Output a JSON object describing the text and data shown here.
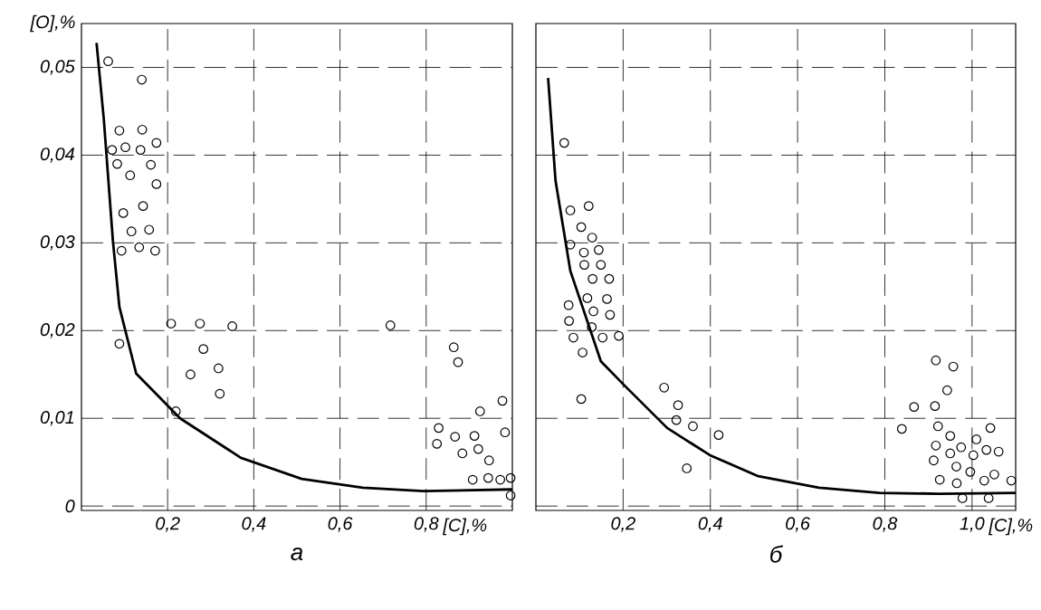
{
  "chart_data": [
    {
      "type": "scatter",
      "title": "а",
      "xlabel": "[C],%",
      "ylabel": "[O],%",
      "xlim": [
        0,
        1.0
      ],
      "ylim": [
        -0.0005,
        0.055
      ],
      "xticks": [
        {
          "value": 0.2,
          "label": "0,2"
        },
        {
          "value": 0.4,
          "label": "0,4"
        },
        {
          "value": 0.6,
          "label": "0,6"
        },
        {
          "value": 0.8,
          "label": "0,8"
        }
      ],
      "yticks": [
        0,
        {
          "value": 0.01,
          "label": "0,01"
        },
        {
          "value": 0.02,
          "label": "0,02"
        },
        {
          "value": 0.03,
          "label": "0,03"
        },
        {
          "value": 0.04,
          "label": "0,04"
        },
        {
          "value": 0.05,
          "label": "0,05"
        }
      ],
      "grid": true,
      "legend": false,
      "series": [
        {
          "marker": "circle",
          "color": "#000000",
          "x": [
            0.062,
            0.14,
            0.088,
            0.141,
            0.071,
            0.102,
            0.137,
            0.174,
            0.083,
            0.161,
            0.113,
            0.174,
            0.097,
            0.143,
            0.116,
            0.157,
            0.093,
            0.134,
            0.171,
            0.088,
            0.208,
            0.275,
            0.35,
            0.717,
            0.283,
            0.253,
            0.318,
            0.321,
            0.219,
            0.864,
            0.874,
            0.977,
            0.925,
            0.829,
            0.825,
            0.867,
            0.912,
            0.983,
            0.921,
            0.884,
            0.946,
            0.908,
            0.944,
            0.972,
            0.996,
            0.996
          ],
          "values": [
            0.0507,
            0.0486,
            0.0428,
            0.0429,
            0.0406,
            0.0409,
            0.0406,
            0.0414,
            0.039,
            0.0389,
            0.0377,
            0.0367,
            0.0334,
            0.0342,
            0.0313,
            0.0315,
            0.0291,
            0.0295,
            0.0291,
            0.0185,
            0.0208,
            0.0208,
            0.0205,
            0.0206,
            0.0179,
            0.015,
            0.0157,
            0.0128,
            0.0108,
            0.0181,
            0.0164,
            0.012,
            0.0108,
            0.0089,
            0.0071,
            0.0079,
            0.008,
            0.0084,
            0.0065,
            0.006,
            0.0052,
            0.003,
            0.0032,
            0.003,
            0.0032,
            0.0012
          ]
        },
        {
          "type": "line",
          "marker": "none",
          "color": "#000000",
          "x": [
            0.035,
            0.052,
            0.073,
            0.088,
            0.127,
            0.229,
            0.37,
            0.511,
            0.653,
            0.794,
            1.0
          ],
          "values": [
            0.0528,
            0.044,
            0.0302,
            0.0227,
            0.0151,
            0.01,
            0.0055,
            0.0031,
            0.0021,
            0.0017,
            0.0019
          ]
        }
      ]
    },
    {
      "type": "scatter",
      "title": "б",
      "xlabel": "[C],%",
      "xlim": [
        0,
        1.1
      ],
      "ylim": [
        -0.0005,
        0.055
      ],
      "tick_labels": "x",
      "xticks": [
        {
          "value": 0.2,
          "label": "0,2"
        },
        {
          "value": 0.4,
          "label": "0,4"
        },
        {
          "value": 0.6,
          "label": "0,6"
        },
        {
          "value": 0.8,
          "label": "0,8"
        },
        {
          "value": 1.0,
          "label": "1,0"
        }
      ],
      "yticks": [
        {
          "value": 0,
          "label": null
        },
        {
          "value": 0.01,
          "label": null
        },
        {
          "value": 0.02,
          "label": null
        },
        {
          "value": 0.03,
          "label": null
        },
        {
          "value": 0.04,
          "label": null
        },
        {
          "value": 0.05,
          "label": null
        }
      ],
      "grid": true,
      "legend": false,
      "series": [
        {
          "marker": "circle",
          "color": "#000000",
          "x": [
            0.065,
            0.079,
            0.121,
            0.104,
            0.129,
            0.079,
            0.144,
            0.11,
            0.149,
            0.111,
            0.13,
            0.168,
            0.118,
            0.163,
            0.075,
            0.132,
            0.17,
            0.076,
            0.128,
            0.153,
            0.19,
            0.086,
            0.107,
            0.104,
            0.294,
            0.326,
            0.322,
            0.36,
            0.419,
            0.346,
            0.917,
            0.957,
            0.943,
            0.867,
            0.915,
            0.839,
            0.922,
            0.95,
            1.01,
            1.042,
            0.917,
            0.975,
            1.033,
            1.061,
            0.95,
            1.003,
            0.912,
            0.964,
            0.996,
            1.051,
            0.926,
            0.965,
            1.028,
            1.09,
            0.978,
            1.038
          ],
          "values": [
            0.0414,
            0.0337,
            0.0342,
            0.0318,
            0.0306,
            0.0298,
            0.0292,
            0.0289,
            0.0275,
            0.0275,
            0.0259,
            0.0259,
            0.0237,
            0.0236,
            0.0229,
            0.0222,
            0.0218,
            0.0211,
            0.0204,
            0.0192,
            0.0194,
            0.0192,
            0.0175,
            0.0122,
            0.0135,
            0.0115,
            0.0098,
            0.0091,
            0.0081,
            0.0043,
            0.0166,
            0.0159,
            0.0132,
            0.0113,
            0.0114,
            0.0088,
            0.0091,
            0.008,
            0.0076,
            0.0089,
            0.0069,
            0.0067,
            0.0064,
            0.0062,
            0.006,
            0.0058,
            0.0052,
            0.0045,
            0.0039,
            0.0036,
            0.003,
            0.0026,
            0.0029,
            0.0029,
            0.0009,
            0.0009
          ]
        },
        {
          "type": "line",
          "marker": "none",
          "color": "#000000",
          "x": [
            0.028,
            0.045,
            0.079,
            0.149,
            0.204,
            0.301,
            0.399,
            0.51,
            0.649,
            0.788,
            0.926,
            1.1
          ],
          "values": [
            0.0488,
            0.0371,
            0.0268,
            0.0165,
            0.0137,
            0.0089,
            0.0058,
            0.0034,
            0.0021,
            0.0015,
            0.0014,
            0.0015
          ]
        }
      ]
    }
  ]
}
